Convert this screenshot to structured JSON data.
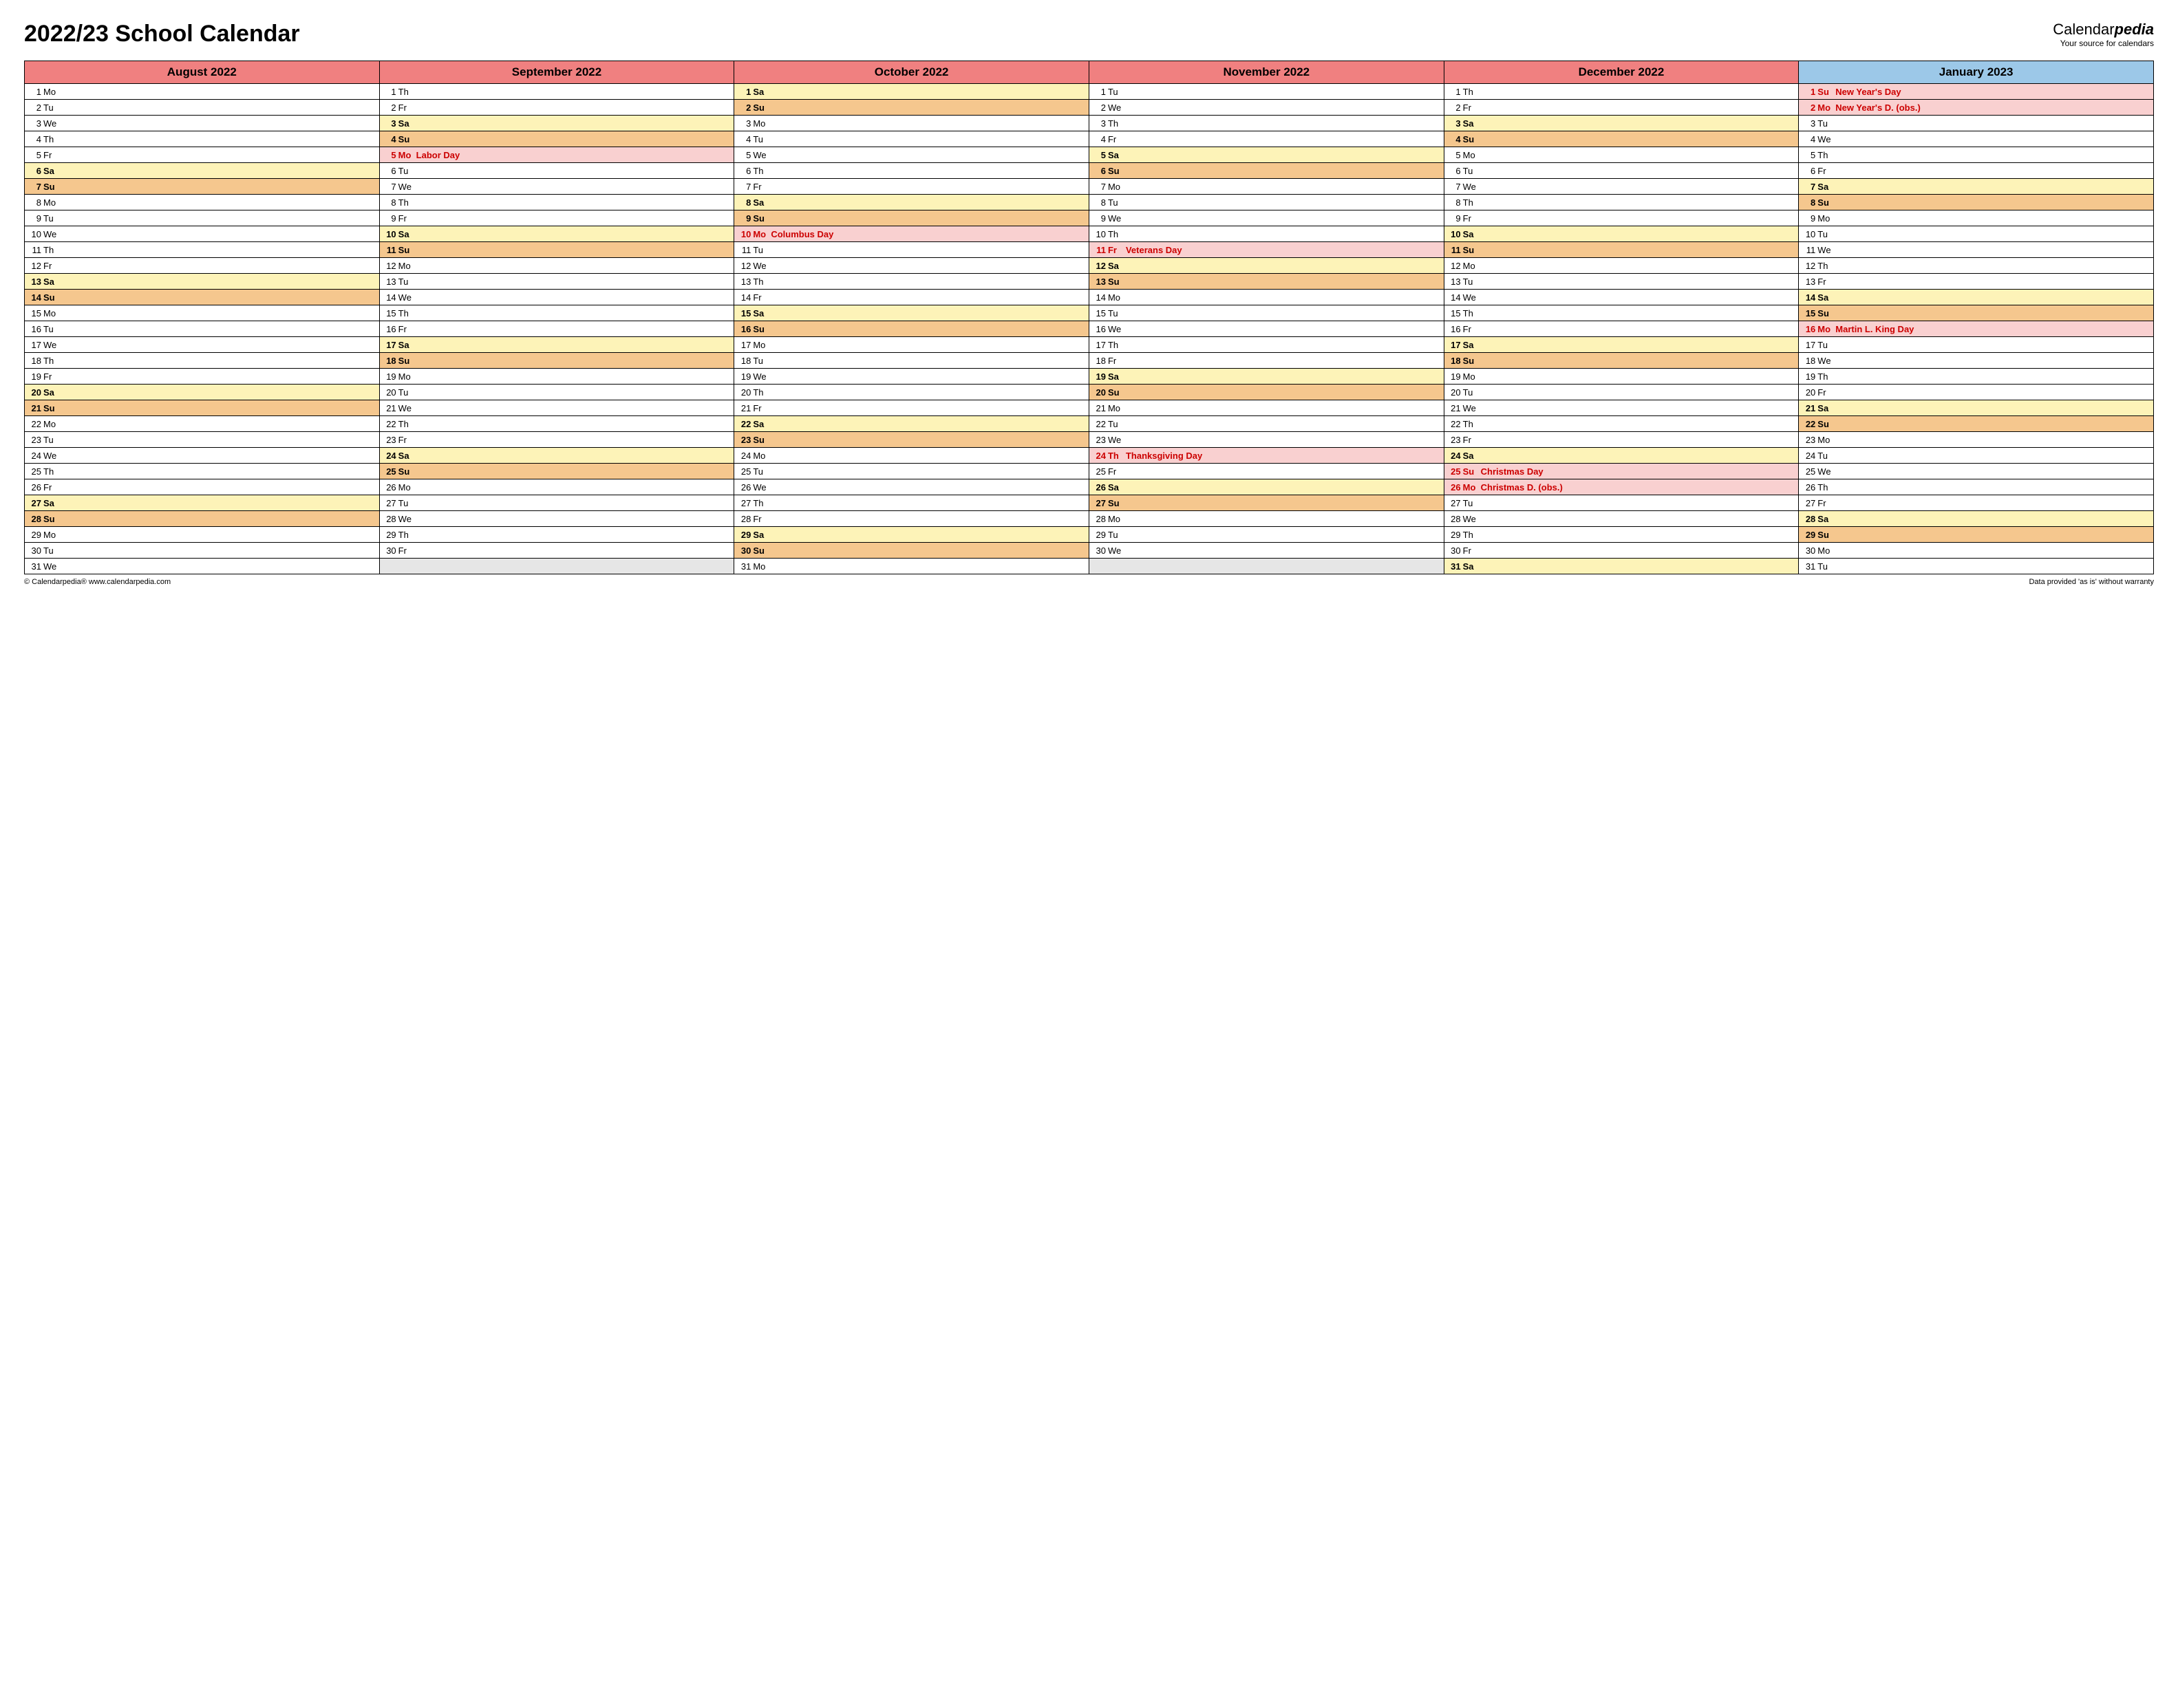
{
  "title": "2022/23 School Calendar",
  "brand": {
    "name1": "Calendar",
    "name2": "pedia",
    "tag": "Your source for calendars"
  },
  "footer": {
    "left": "© Calendarpedia®   www.calendarpedia.com",
    "right": "Data provided 'as is' without warranty"
  },
  "colors": {
    "header_red": "#f08080",
    "header_blue": "#9cc8e8",
    "sat": "#fdf3b8",
    "sun": "#f5c78e",
    "holiday": "#f9d0d0",
    "hol_text": "#cc0000",
    "blank": "#e6e6e6"
  },
  "months": [
    {
      "name": "August 2022",
      "header_color": "header_red",
      "days": [
        {
          "n": 1,
          "a": "Mo"
        },
        {
          "n": 2,
          "a": "Tu"
        },
        {
          "n": 3,
          "a": "We"
        },
        {
          "n": 4,
          "a": "Th"
        },
        {
          "n": 5,
          "a": "Fr"
        },
        {
          "n": 6,
          "a": "Sa",
          "t": "sat"
        },
        {
          "n": 7,
          "a": "Su",
          "t": "sun"
        },
        {
          "n": 8,
          "a": "Mo"
        },
        {
          "n": 9,
          "a": "Tu"
        },
        {
          "n": 10,
          "a": "We"
        },
        {
          "n": 11,
          "a": "Th"
        },
        {
          "n": 12,
          "a": "Fr"
        },
        {
          "n": 13,
          "a": "Sa",
          "t": "sat"
        },
        {
          "n": 14,
          "a": "Su",
          "t": "sun"
        },
        {
          "n": 15,
          "a": "Mo"
        },
        {
          "n": 16,
          "a": "Tu"
        },
        {
          "n": 17,
          "a": "We"
        },
        {
          "n": 18,
          "a": "Th"
        },
        {
          "n": 19,
          "a": "Fr"
        },
        {
          "n": 20,
          "a": "Sa",
          "t": "sat"
        },
        {
          "n": 21,
          "a": "Su",
          "t": "sun"
        },
        {
          "n": 22,
          "a": "Mo"
        },
        {
          "n": 23,
          "a": "Tu"
        },
        {
          "n": 24,
          "a": "We"
        },
        {
          "n": 25,
          "a": "Th"
        },
        {
          "n": 26,
          "a": "Fr"
        },
        {
          "n": 27,
          "a": "Sa",
          "t": "sat"
        },
        {
          "n": 28,
          "a": "Su",
          "t": "sun"
        },
        {
          "n": 29,
          "a": "Mo"
        },
        {
          "n": 30,
          "a": "Tu"
        },
        {
          "n": 31,
          "a": "We"
        }
      ]
    },
    {
      "name": "September 2022",
      "header_color": "header_red",
      "days": [
        {
          "n": 1,
          "a": "Th"
        },
        {
          "n": 2,
          "a": "Fr"
        },
        {
          "n": 3,
          "a": "Sa",
          "t": "sat"
        },
        {
          "n": 4,
          "a": "Su",
          "t": "sun"
        },
        {
          "n": 5,
          "a": "Mo",
          "t": "hol",
          "h": "Labor Day"
        },
        {
          "n": 6,
          "a": "Tu"
        },
        {
          "n": 7,
          "a": "We"
        },
        {
          "n": 8,
          "a": "Th"
        },
        {
          "n": 9,
          "a": "Fr"
        },
        {
          "n": 10,
          "a": "Sa",
          "t": "sat"
        },
        {
          "n": 11,
          "a": "Su",
          "t": "sun"
        },
        {
          "n": 12,
          "a": "Mo"
        },
        {
          "n": 13,
          "a": "Tu"
        },
        {
          "n": 14,
          "a": "We"
        },
        {
          "n": 15,
          "a": "Th"
        },
        {
          "n": 16,
          "a": "Fr"
        },
        {
          "n": 17,
          "a": "Sa",
          "t": "sat"
        },
        {
          "n": 18,
          "a": "Su",
          "t": "sun"
        },
        {
          "n": 19,
          "a": "Mo"
        },
        {
          "n": 20,
          "a": "Tu"
        },
        {
          "n": 21,
          "a": "We"
        },
        {
          "n": 22,
          "a": "Th"
        },
        {
          "n": 23,
          "a": "Fr"
        },
        {
          "n": 24,
          "a": "Sa",
          "t": "sat"
        },
        {
          "n": 25,
          "a": "Su",
          "t": "sun"
        },
        {
          "n": 26,
          "a": "Mo"
        },
        {
          "n": 27,
          "a": "Tu"
        },
        {
          "n": 28,
          "a": "We"
        },
        {
          "n": 29,
          "a": "Th"
        },
        {
          "n": 30,
          "a": "Fr"
        }
      ]
    },
    {
      "name": "October 2022",
      "header_color": "header_red",
      "days": [
        {
          "n": 1,
          "a": "Sa",
          "t": "sat"
        },
        {
          "n": 2,
          "a": "Su",
          "t": "sun"
        },
        {
          "n": 3,
          "a": "Mo"
        },
        {
          "n": 4,
          "a": "Tu"
        },
        {
          "n": 5,
          "a": "We"
        },
        {
          "n": 6,
          "a": "Th"
        },
        {
          "n": 7,
          "a": "Fr"
        },
        {
          "n": 8,
          "a": "Sa",
          "t": "sat"
        },
        {
          "n": 9,
          "a": "Su",
          "t": "sun"
        },
        {
          "n": 10,
          "a": "Mo",
          "t": "hol",
          "h": "Columbus Day"
        },
        {
          "n": 11,
          "a": "Tu"
        },
        {
          "n": 12,
          "a": "We"
        },
        {
          "n": 13,
          "a": "Th"
        },
        {
          "n": 14,
          "a": "Fr"
        },
        {
          "n": 15,
          "a": "Sa",
          "t": "sat"
        },
        {
          "n": 16,
          "a": "Su",
          "t": "sun"
        },
        {
          "n": 17,
          "a": "Mo"
        },
        {
          "n": 18,
          "a": "Tu"
        },
        {
          "n": 19,
          "a": "We"
        },
        {
          "n": 20,
          "a": "Th"
        },
        {
          "n": 21,
          "a": "Fr"
        },
        {
          "n": 22,
          "a": "Sa",
          "t": "sat"
        },
        {
          "n": 23,
          "a": "Su",
          "t": "sun"
        },
        {
          "n": 24,
          "a": "Mo"
        },
        {
          "n": 25,
          "a": "Tu"
        },
        {
          "n": 26,
          "a": "We"
        },
        {
          "n": 27,
          "a": "Th"
        },
        {
          "n": 28,
          "a": "Fr"
        },
        {
          "n": 29,
          "a": "Sa",
          "t": "sat"
        },
        {
          "n": 30,
          "a": "Su",
          "t": "sun"
        },
        {
          "n": 31,
          "a": "Mo"
        }
      ]
    },
    {
      "name": "November 2022",
      "header_color": "header_red",
      "days": [
        {
          "n": 1,
          "a": "Tu"
        },
        {
          "n": 2,
          "a": "We"
        },
        {
          "n": 3,
          "a": "Th"
        },
        {
          "n": 4,
          "a": "Fr"
        },
        {
          "n": 5,
          "a": "Sa",
          "t": "sat"
        },
        {
          "n": 6,
          "a": "Su",
          "t": "sun"
        },
        {
          "n": 7,
          "a": "Mo"
        },
        {
          "n": 8,
          "a": "Tu"
        },
        {
          "n": 9,
          "a": "We"
        },
        {
          "n": 10,
          "a": "Th"
        },
        {
          "n": 11,
          "a": "Fr",
          "t": "hol",
          "h": "Veterans Day"
        },
        {
          "n": 12,
          "a": "Sa",
          "t": "sat"
        },
        {
          "n": 13,
          "a": "Su",
          "t": "sun"
        },
        {
          "n": 14,
          "a": "Mo"
        },
        {
          "n": 15,
          "a": "Tu"
        },
        {
          "n": 16,
          "a": "We"
        },
        {
          "n": 17,
          "a": "Th"
        },
        {
          "n": 18,
          "a": "Fr"
        },
        {
          "n": 19,
          "a": "Sa",
          "t": "sat"
        },
        {
          "n": 20,
          "a": "Su",
          "t": "sun"
        },
        {
          "n": 21,
          "a": "Mo"
        },
        {
          "n": 22,
          "a": "Tu"
        },
        {
          "n": 23,
          "a": "We"
        },
        {
          "n": 24,
          "a": "Th",
          "t": "hol",
          "h": "Thanksgiving Day"
        },
        {
          "n": 25,
          "a": "Fr"
        },
        {
          "n": 26,
          "a": "Sa",
          "t": "sat"
        },
        {
          "n": 27,
          "a": "Su",
          "t": "sun"
        },
        {
          "n": 28,
          "a": "Mo"
        },
        {
          "n": 29,
          "a": "Tu"
        },
        {
          "n": 30,
          "a": "We"
        }
      ]
    },
    {
      "name": "December 2022",
      "header_color": "header_red",
      "days": [
        {
          "n": 1,
          "a": "Th"
        },
        {
          "n": 2,
          "a": "Fr"
        },
        {
          "n": 3,
          "a": "Sa",
          "t": "sat"
        },
        {
          "n": 4,
          "a": "Su",
          "t": "sun"
        },
        {
          "n": 5,
          "a": "Mo"
        },
        {
          "n": 6,
          "a": "Tu"
        },
        {
          "n": 7,
          "a": "We"
        },
        {
          "n": 8,
          "a": "Th"
        },
        {
          "n": 9,
          "a": "Fr"
        },
        {
          "n": 10,
          "a": "Sa",
          "t": "sat"
        },
        {
          "n": 11,
          "a": "Su",
          "t": "sun"
        },
        {
          "n": 12,
          "a": "Mo"
        },
        {
          "n": 13,
          "a": "Tu"
        },
        {
          "n": 14,
          "a": "We"
        },
        {
          "n": 15,
          "a": "Th"
        },
        {
          "n": 16,
          "a": "Fr"
        },
        {
          "n": 17,
          "a": "Sa",
          "t": "sat"
        },
        {
          "n": 18,
          "a": "Su",
          "t": "sun"
        },
        {
          "n": 19,
          "a": "Mo"
        },
        {
          "n": 20,
          "a": "Tu"
        },
        {
          "n": 21,
          "a": "We"
        },
        {
          "n": 22,
          "a": "Th"
        },
        {
          "n": 23,
          "a": "Fr"
        },
        {
          "n": 24,
          "a": "Sa",
          "t": "sat"
        },
        {
          "n": 25,
          "a": "Su",
          "t": "hol",
          "h": "Christmas Day"
        },
        {
          "n": 26,
          "a": "Mo",
          "t": "hol",
          "h": "Christmas D. (obs.)"
        },
        {
          "n": 27,
          "a": "Tu"
        },
        {
          "n": 28,
          "a": "We"
        },
        {
          "n": 29,
          "a": "Th"
        },
        {
          "n": 30,
          "a": "Fr"
        },
        {
          "n": 31,
          "a": "Sa",
          "t": "sat"
        }
      ]
    },
    {
      "name": "January 2023",
      "header_color": "header_blue",
      "days": [
        {
          "n": 1,
          "a": "Su",
          "t": "hol",
          "h": "New Year's Day"
        },
        {
          "n": 2,
          "a": "Mo",
          "t": "hol",
          "h": "New Year's D. (obs.)"
        },
        {
          "n": 3,
          "a": "Tu"
        },
        {
          "n": 4,
          "a": "We"
        },
        {
          "n": 5,
          "a": "Th"
        },
        {
          "n": 6,
          "a": "Fr"
        },
        {
          "n": 7,
          "a": "Sa",
          "t": "sat"
        },
        {
          "n": 8,
          "a": "Su",
          "t": "sun"
        },
        {
          "n": 9,
          "a": "Mo"
        },
        {
          "n": 10,
          "a": "Tu"
        },
        {
          "n": 11,
          "a": "We"
        },
        {
          "n": 12,
          "a": "Th"
        },
        {
          "n": 13,
          "a": "Fr"
        },
        {
          "n": 14,
          "a": "Sa",
          "t": "sat"
        },
        {
          "n": 15,
          "a": "Su",
          "t": "sun"
        },
        {
          "n": 16,
          "a": "Mo",
          "t": "hol",
          "h": "Martin L. King Day"
        },
        {
          "n": 17,
          "a": "Tu"
        },
        {
          "n": 18,
          "a": "We"
        },
        {
          "n": 19,
          "a": "Th"
        },
        {
          "n": 20,
          "a": "Fr"
        },
        {
          "n": 21,
          "a": "Sa",
          "t": "sat"
        },
        {
          "n": 22,
          "a": "Su",
          "t": "sun"
        },
        {
          "n": 23,
          "a": "Mo"
        },
        {
          "n": 24,
          "a": "Tu"
        },
        {
          "n": 25,
          "a": "We"
        },
        {
          "n": 26,
          "a": "Th"
        },
        {
          "n": 27,
          "a": "Fr"
        },
        {
          "n": 28,
          "a": "Sa",
          "t": "sat"
        },
        {
          "n": 29,
          "a": "Su",
          "t": "sun"
        },
        {
          "n": 30,
          "a": "Mo"
        },
        {
          "n": 31,
          "a": "Tu"
        }
      ]
    }
  ],
  "max_rows": 31
}
